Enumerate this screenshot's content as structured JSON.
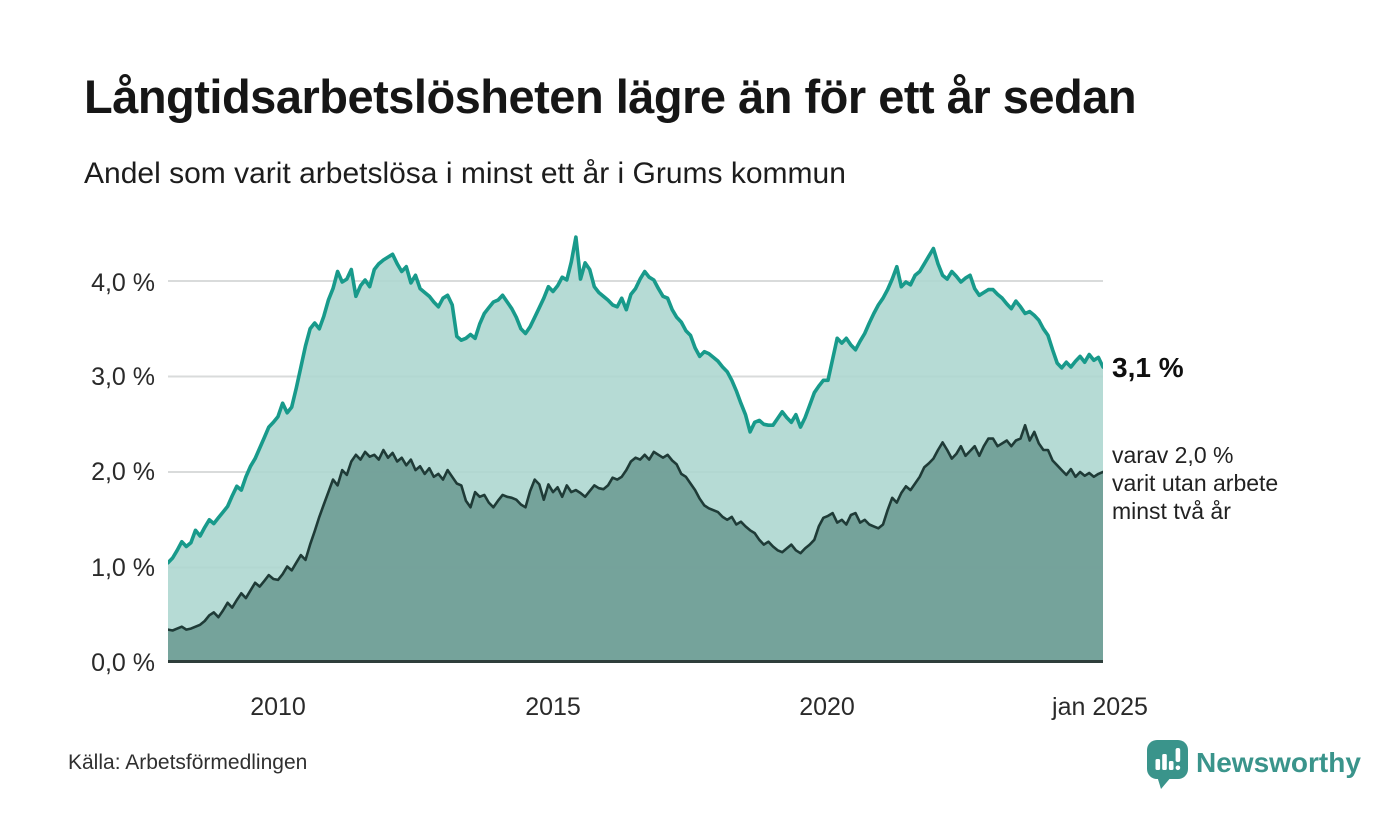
{
  "header": {
    "title": "Långtidsarbetslösheten lägre än för ett år sedan",
    "subtitle": "Andel som varit arbetslösa i minst ett år i Grums kommun"
  },
  "footer": {
    "source": "Källa: Arbetsförmedlingen",
    "brand": "Newsworthy"
  },
  "chart_data": {
    "type": "area",
    "unit": "%",
    "frequency": "monthly",
    "x_start": "2008-01",
    "x_end": "2025-01",
    "x_ticks": [
      "2010",
      "2015",
      "2020",
      "jan 2025"
    ],
    "y_ticks": [
      "4,0 %",
      "3,0 %",
      "2,0 %",
      "1,0 %",
      "0,0 %"
    ],
    "y_grid_values": [
      4,
      3,
      2,
      1
    ],
    "ylim": [
      0,
      4.555
    ],
    "grid": "horizontal",
    "legend": "none",
    "annotations": {
      "latest_total": "3,1 %",
      "latest_two_plus_lines": [
        "varav 2,0 %",
        "varit utan arbete",
        "minst två år"
      ]
    },
    "series": [
      {
        "id": "total",
        "label": "Andel som varit arbetslösa i minst ett år",
        "latest_value": 3.1,
        "values": [
          1.05,
          1.1,
          1.18,
          1.27,
          1.22,
          1.26,
          1.39,
          1.33,
          1.42,
          1.5,
          1.46,
          1.52,
          1.58,
          1.64,
          1.75,
          1.85,
          1.81,
          1.95,
          2.06,
          2.14,
          2.25,
          2.36,
          2.47,
          2.52,
          2.58,
          2.72,
          2.62,
          2.68,
          2.88,
          3.1,
          3.32,
          3.5,
          3.56,
          3.5,
          3.63,
          3.8,
          3.92,
          4.1,
          3.99,
          4.02,
          4.12,
          3.84,
          3.95,
          4.01,
          3.94,
          4.12,
          4.18,
          4.22,
          4.25,
          4.28,
          4.18,
          4.1,
          4.15,
          3.98,
          4.06,
          3.92,
          3.88,
          3.84,
          3.78,
          3.73,
          3.82,
          3.85,
          3.75,
          3.42,
          3.38,
          3.4,
          3.44,
          3.4,
          3.55,
          3.66,
          3.72,
          3.78,
          3.8,
          3.85,
          3.78,
          3.71,
          3.62,
          3.5,
          3.45,
          3.52,
          3.62,
          3.72,
          3.82,
          3.94,
          3.89,
          3.95,
          4.04,
          4.01,
          4.2,
          4.46,
          4.02,
          4.19,
          4.12,
          3.94,
          3.88,
          3.84,
          3.8,
          3.75,
          3.73,
          3.82,
          3.7,
          3.86,
          3.92,
          4.02,
          4.1,
          4.04,
          4.01,
          3.92,
          3.84,
          3.82,
          3.7,
          3.62,
          3.57,
          3.48,
          3.43,
          3.3,
          3.21,
          3.26,
          3.24,
          3.2,
          3.16,
          3.1,
          3.05,
          2.96,
          2.85,
          2.72,
          2.6,
          2.42,
          2.52,
          2.54,
          2.5,
          2.49,
          2.49,
          2.56,
          2.63,
          2.57,
          2.52,
          2.6,
          2.47,
          2.57,
          2.7,
          2.83,
          2.9,
          2.96,
          2.96,
          3.18,
          3.4,
          3.35,
          3.4,
          3.33,
          3.28,
          3.37,
          3.45,
          3.56,
          3.66,
          3.75,
          3.82,
          3.91,
          4.02,
          4.15,
          3.94,
          3.99,
          3.96,
          4.06,
          4.1,
          4.18,
          4.26,
          4.34,
          4.18,
          4.06,
          4.02,
          4.1,
          4.05,
          3.99,
          4.03,
          4.06,
          3.92,
          3.85,
          3.88,
          3.91,
          3.91,
          3.86,
          3.82,
          3.76,
          3.71,
          3.79,
          3.73,
          3.66,
          3.68,
          3.64,
          3.59,
          3.5,
          3.43,
          3.28,
          3.14,
          3.09,
          3.15,
          3.1,
          3.16,
          3.21,
          3.15,
          3.23,
          3.17,
          3.2,
          3.1
        ]
      },
      {
        "id": "two_plus",
        "label": "varav utan arbete minst två år",
        "latest_value": 2.0,
        "values": [
          0.35,
          0.34,
          0.36,
          0.38,
          0.35,
          0.36,
          0.38,
          0.4,
          0.44,
          0.5,
          0.53,
          0.48,
          0.55,
          0.63,
          0.58,
          0.66,
          0.73,
          0.68,
          0.76,
          0.84,
          0.8,
          0.86,
          0.92,
          0.88,
          0.87,
          0.93,
          1.01,
          0.97,
          1.05,
          1.13,
          1.08,
          1.24,
          1.38,
          1.53,
          1.66,
          1.79,
          1.92,
          1.86,
          2.02,
          1.97,
          2.11,
          2.18,
          2.13,
          2.21,
          2.16,
          2.18,
          2.13,
          2.23,
          2.15,
          2.2,
          2.11,
          2.15,
          2.07,
          2.13,
          2.02,
          2.06,
          1.98,
          2.04,
          1.95,
          1.98,
          1.92,
          2.02,
          1.95,
          1.88,
          1.86,
          1.7,
          1.63,
          1.79,
          1.74,
          1.76,
          1.68,
          1.63,
          1.7,
          1.76,
          1.74,
          1.73,
          1.71,
          1.66,
          1.63,
          1.8,
          1.92,
          1.87,
          1.71,
          1.87,
          1.79,
          1.84,
          1.74,
          1.86,
          1.79,
          1.81,
          1.78,
          1.74,
          1.8,
          1.86,
          1.83,
          1.82,
          1.86,
          1.94,
          1.92,
          1.95,
          2.02,
          2.11,
          2.15,
          2.13,
          2.18,
          2.13,
          2.21,
          2.18,
          2.15,
          2.18,
          2.12,
          2.08,
          1.98,
          1.95,
          1.88,
          1.81,
          1.72,
          1.65,
          1.62,
          1.6,
          1.58,
          1.53,
          1.5,
          1.53,
          1.45,
          1.48,
          1.43,
          1.39,
          1.36,
          1.29,
          1.24,
          1.27,
          1.22,
          1.18,
          1.16,
          1.2,
          1.24,
          1.18,
          1.15,
          1.2,
          1.24,
          1.29,
          1.43,
          1.52,
          1.54,
          1.57,
          1.47,
          1.5,
          1.45,
          1.55,
          1.57,
          1.47,
          1.5,
          1.45,
          1.43,
          1.41,
          1.45,
          1.6,
          1.73,
          1.68,
          1.78,
          1.85,
          1.81,
          1.88,
          1.95,
          2.05,
          2.09,
          2.14,
          2.23,
          2.31,
          2.23,
          2.14,
          2.19,
          2.27,
          2.17,
          2.22,
          2.27,
          2.17,
          2.27,
          2.35,
          2.35,
          2.27,
          2.3,
          2.33,
          2.27,
          2.33,
          2.35,
          2.49,
          2.33,
          2.42,
          2.3,
          2.23,
          2.23,
          2.12,
          2.07,
          2.02,
          1.97,
          2.03,
          1.95,
          2.0,
          1.96,
          1.99,
          1.95,
          1.98,
          2.0
        ]
      }
    ],
    "colors": {
      "line_total": "#189a8b",
      "area_total": "#acd6cf",
      "line_two_plus": "#1f3b37",
      "area_two_plus": "#709e97",
      "grid": "#d9dbdb",
      "axis": "#2e3e3b",
      "brand_teal": "#3a948b",
      "text": "#161616"
    }
  }
}
